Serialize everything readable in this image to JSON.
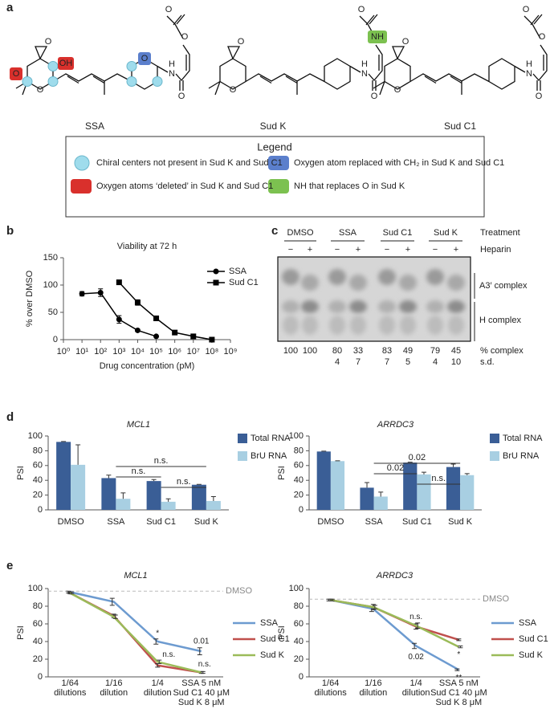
{
  "panel_a": {
    "label": "a",
    "compounds": [
      {
        "name": "SSA",
        "atoms": [
          "O",
          "O",
          "O",
          "OH",
          "O",
          "H",
          "N",
          "O",
          "O",
          "O"
        ]
      },
      {
        "name": "Sud K",
        "atoms": [
          "O",
          "O",
          "H",
          "N",
          "O",
          "NH",
          "O"
        ]
      },
      {
        "name": "Sud C1",
        "atoms": [
          "O",
          "O",
          "H",
          "N",
          "O",
          "O",
          "O"
        ]
      }
    ],
    "legend": {
      "title": "Legend",
      "items": [
        "Chiral centers not present in Sud K and Sud C1",
        "Oxygen atoms ‘deleted’ in Sud K and Sud C1",
        "Oxygen atom replaced with CH₂ in Sud K and Sud C1",
        "NH that replaces O in Sud K"
      ]
    }
  },
  "panel_c": {
    "label": "c",
    "treatment_label": "Treatment",
    "heparin_label": "Heparin",
    "treatments": [
      "DMSO",
      "SSA",
      "Sud C1",
      "Sud K"
    ],
    "heparin": [
      "−",
      "+",
      "−",
      "+",
      "−",
      "+",
      "−",
      "+"
    ],
    "bands": [
      "A3′ complex",
      "H complex"
    ],
    "percent_label": "% complex",
    "sd_label": "s.d.",
    "percent": [
      100,
      100,
      80,
      33,
      83,
      49,
      79,
      45
    ],
    "sd": [
      null,
      null,
      4,
      7,
      7,
      5,
      4,
      10
    ]
  },
  "chart_data": [
    {
      "type": "line",
      "panel_label": "b",
      "title": "Viability at 72 h",
      "y_label": "% over DMSO",
      "x_label": "Drug concentration (pM)",
      "x_scale": "log",
      "series": [
        {
          "name": "SSA",
          "marker": "circle",
          "color": "#000000",
          "x": [
            10,
            100,
            1000,
            10000,
            100000
          ],
          "values": [
            84,
            86,
            37,
            17,
            6
          ],
          "errors": [
            4,
            7,
            7,
            2,
            1
          ]
        },
        {
          "name": "Sud C1",
          "marker": "square",
          "color": "#000000",
          "x": [
            1000,
            10000,
            100000,
            1000000,
            10000000,
            100000000
          ],
          "values": [
            105,
            68,
            39,
            13,
            6,
            0
          ],
          "errors": [
            4,
            5,
            2,
            1,
            1,
            1
          ]
        }
      ],
      "xlim": [
        1,
        1000000000
      ],
      "xticks": [
        {
          "value": 1,
          "label": "10⁰"
        },
        {
          "value": 10,
          "label": "10¹"
        },
        {
          "value": 100,
          "label": "10²"
        },
        {
          "value": 1000,
          "label": "10³"
        },
        {
          "value": 10000,
          "label": "10⁴"
        },
        {
          "value": 100000,
          "label": "10⁵"
        },
        {
          "value": 1000000,
          "label": "10⁶"
        },
        {
          "value": 10000000,
          "label": "10⁷"
        },
        {
          "value": 100000000,
          "label": "10⁸"
        },
        {
          "value": 1000000000,
          "label": "10⁹"
        }
      ],
      "ylim": [
        0,
        150
      ],
      "yticks": [
        0,
        50,
        100,
        150
      ],
      "legend": "right"
    },
    {
      "type": "bar",
      "panel_label": "d",
      "title": "MCL1",
      "y_label": "PSI",
      "categories": [
        "DMSO",
        "SSA",
        "Sud C1",
        "Sud K"
      ],
      "series": [
        {
          "name": "Total RNA",
          "color": "#3a5e96",
          "values": [
            92,
            43,
            39,
            34
          ],
          "errors": [
            0.5,
            4,
            2,
            0.5
          ]
        },
        {
          "name": "BrU RNA",
          "color": "#a8cfe2",
          "values": [
            61,
            15,
            11,
            12
          ],
          "errors": [
            27,
            8,
            4,
            6
          ]
        }
      ],
      "ylim": [
        0,
        100
      ],
      "yticks": [
        0,
        20,
        40,
        60,
        80,
        100
      ],
      "annotations": [
        "n.s.",
        "n.s.",
        "n.s."
      ]
    },
    {
      "type": "bar",
      "title": "ARRDC3",
      "y_label": "PSI",
      "categories": [
        "DMSO",
        "SSA",
        "Sud C1",
        "Sud K"
      ],
      "series": [
        {
          "name": "Total RNA",
          "color": "#3a5e96",
          "values": [
            79,
            30,
            64,
            58
          ],
          "errors": [
            0.5,
            7,
            0.5,
            4
          ]
        },
        {
          "name": "BrU RNA",
          "color": "#a8cfe2",
          "values": [
            66,
            18,
            48,
            47
          ],
          "errors": [
            0.5,
            6,
            3,
            2
          ]
        }
      ],
      "ylim": [
        0,
        100
      ],
      "yticks": [
        0,
        20,
        40,
        60,
        80,
        100
      ],
      "annotations": [
        "0.02",
        "0.02",
        "n.s."
      ]
    },
    {
      "type": "line",
      "panel_label": "e",
      "title": "MCL1",
      "y_label": "PSI",
      "categories": [
        [
          "1/64",
          "dilutions"
        ],
        [
          "1/16",
          "dilution"
        ],
        [
          "1/4",
          "dilution"
        ],
        [
          "SSA 5 nM",
          "Sud C1 40 μM",
          "Sud K 8 μM"
        ]
      ],
      "series": [
        {
          "name": "SSA",
          "color": "#6d9bd0",
          "values": [
            96,
            85,
            40,
            29
          ],
          "errors": [
            1,
            4,
            3,
            4
          ]
        },
        {
          "name": "Sud C1",
          "color": "#c0504d",
          "values": [
            95,
            69,
            13,
            5
          ],
          "errors": [
            1,
            2,
            2,
            1
          ]
        },
        {
          "name": "Sud K",
          "color": "#9bbb59",
          "values": [
            95,
            68,
            17,
            5
          ],
          "errors": [
            1,
            2,
            2,
            1
          ]
        }
      ],
      "reference": {
        "label": "DMSO",
        "value": 97
      },
      "ylim": [
        0,
        100
      ],
      "yticks": [
        0,
        20,
        40,
        60,
        80,
        100
      ],
      "annotations": [
        "*",
        "0.01",
        "n.s.",
        "n.s."
      ]
    },
    {
      "type": "line",
      "title": "ARRDC3",
      "y_label": "PSI",
      "categories": [
        [
          "1/64",
          "dilutions"
        ],
        [
          "1/16",
          "dilution"
        ],
        [
          "1/4",
          "dilution"
        ],
        [
          "SSA 5 nM",
          "Sud C1 40 μM",
          "Sud K 8 μM"
        ]
      ],
      "series": [
        {
          "name": "SSA",
          "color": "#6d9bd0",
          "values": [
            87,
            77,
            35,
            8
          ],
          "errors": [
            1,
            3,
            3,
            1
          ]
        },
        {
          "name": "Sud C1",
          "color": "#c0504d",
          "values": [
            87,
            79,
            57,
            42
          ],
          "errors": [
            1,
            3,
            3,
            1
          ]
        },
        {
          "name": "Sud K",
          "color": "#9bbb59",
          "values": [
            87,
            79,
            58,
            34
          ],
          "errors": [
            1,
            2,
            3,
            1
          ]
        }
      ],
      "reference": {
        "label": "DMSO",
        "value": 88
      },
      "ylim": [
        0,
        100
      ],
      "yticks": [
        0,
        20,
        40,
        60,
        80,
        100
      ],
      "annotations": [
        "n.s.",
        "0.02",
        "*",
        "**"
      ]
    }
  ]
}
